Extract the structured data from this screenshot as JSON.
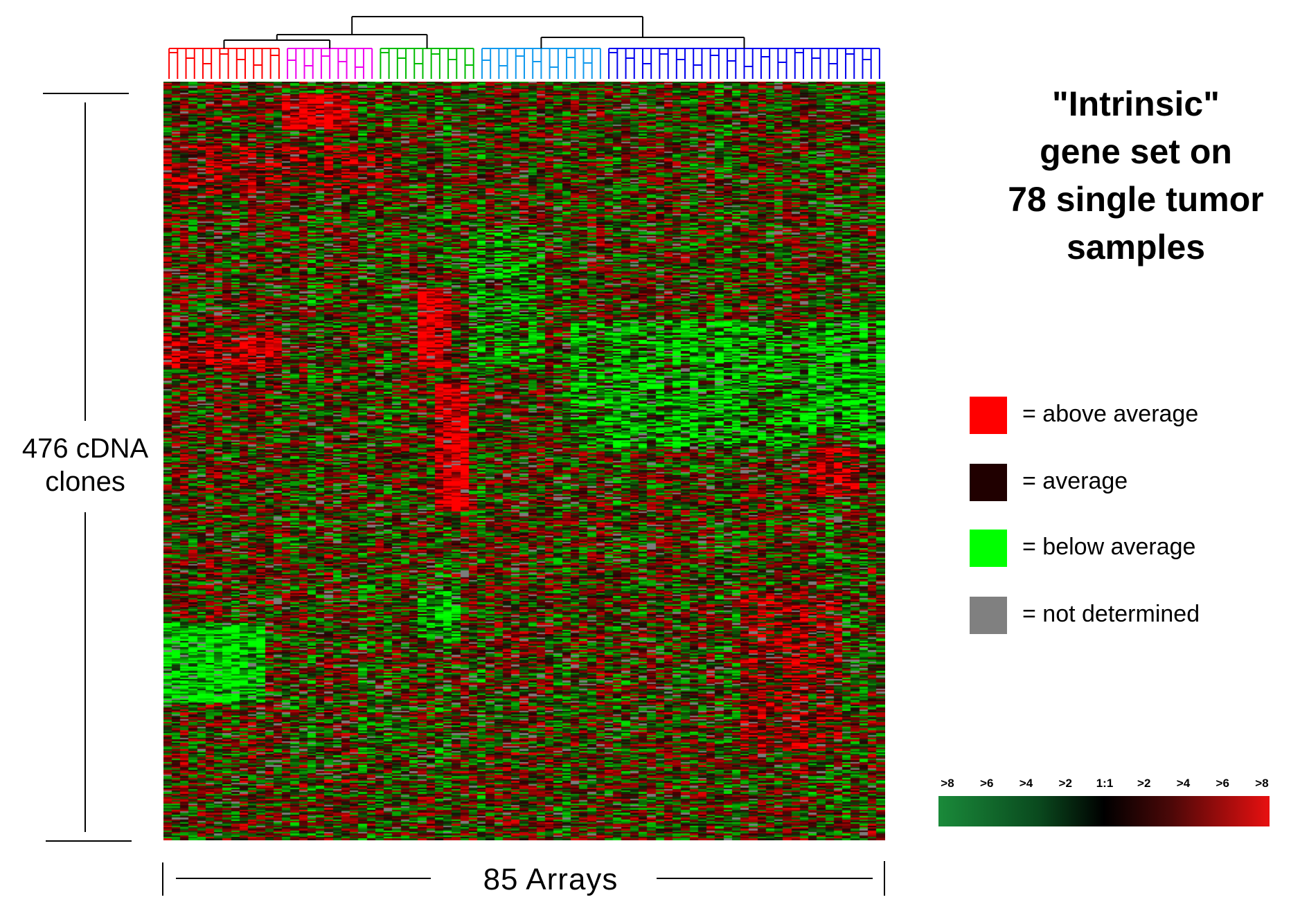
{
  "title_lines": [
    "\"Intrinsic\"",
    "gene set on",
    "78 single tumor",
    "samples"
  ],
  "y_label_lines": [
    "476 cDNA",
    "clones"
  ],
  "x_label": "85 Arrays",
  "legend": [
    {
      "label": "= above average",
      "color": "#ff0000"
    },
    {
      "label": "= average",
      "color": "#200000"
    },
    {
      "label": "= below average",
      "color": "#00ff00"
    },
    {
      "label": "= not determined",
      "color": "#808080"
    }
  ],
  "scale_labels": [
    ">8",
    ">6",
    ">4",
    ">2",
    "1:1",
    ">2",
    ">4",
    ">6",
    ">8"
  ],
  "chart_data": {
    "type": "heatmap",
    "rows": 476,
    "columns": 85,
    "row_label": "476 cDNA clones",
    "column_label": "85 Arrays",
    "value_colors": {
      "above": "#ff0000",
      "average": "#200000",
      "below": "#00ff00",
      "missing": "#808080"
    },
    "color_scale": {
      "low_color": "#1a8a3a",
      "mid_color": "#000000",
      "high_color": "#e81010",
      "tick_labels": [
        ">8",
        ">6",
        ">4",
        ">2",
        "1:1",
        ">2",
        ">4",
        ">6",
        ">8"
      ]
    },
    "dendrogram_clusters": [
      {
        "color": "#ff0000",
        "columns": 14
      },
      {
        "color": "#ee00ee",
        "columns": 11
      },
      {
        "color": "#00bb00",
        "columns": 12
      },
      {
        "color": "#1199ee",
        "columns": 15
      },
      {
        "color": "#0000ee",
        "columns": 33
      }
    ]
  }
}
